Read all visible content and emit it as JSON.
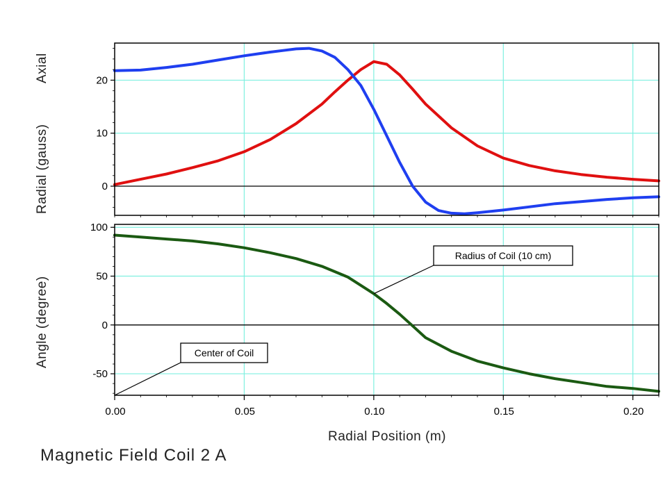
{
  "caption": "Magnetic Field Coil 2 A",
  "colors": {
    "axial": "#e01010",
    "radial": "#1f3ff0",
    "angle": "#1b5a12",
    "grid": "#7ff0e0",
    "zero_line": "#000000"
  },
  "chart_data": [
    {
      "type": "line",
      "ylabel_axial": "Axial",
      "ylabel_radial": "Radial (gauss)",
      "xlim": [
        0,
        0.21
      ],
      "ylim": [
        -5.5,
        27
      ],
      "yticks": [
        0,
        10,
        20
      ],
      "ytick_labels": [
        "0",
        "10",
        "20"
      ],
      "grid": true,
      "series": [
        {
          "name": "Axial",
          "color": "red",
          "x": [
            0.0,
            0.01,
            0.02,
            0.03,
            0.04,
            0.05,
            0.06,
            0.07,
            0.08,
            0.085,
            0.09,
            0.095,
            0.1,
            0.105,
            0.11,
            0.115,
            0.12,
            0.13,
            0.14,
            0.15,
            0.16,
            0.17,
            0.18,
            0.19,
            0.2,
            0.21
          ],
          "y": [
            0.3,
            1.3,
            2.3,
            3.5,
            4.8,
            6.5,
            8.8,
            11.8,
            15.5,
            17.8,
            20.0,
            22.0,
            23.5,
            23.0,
            21.0,
            18.3,
            15.5,
            11.0,
            7.6,
            5.3,
            3.9,
            2.9,
            2.2,
            1.7,
            1.3,
            1.0
          ]
        },
        {
          "name": "Radial",
          "color": "blue",
          "x": [
            0.0,
            0.01,
            0.02,
            0.03,
            0.04,
            0.05,
            0.06,
            0.065,
            0.07,
            0.075,
            0.08,
            0.085,
            0.09,
            0.095,
            0.1,
            0.105,
            0.11,
            0.115,
            0.12,
            0.125,
            0.13,
            0.135,
            0.14,
            0.15,
            0.16,
            0.17,
            0.18,
            0.19,
            0.2,
            0.21
          ],
          "y": [
            21.8,
            21.9,
            22.4,
            23.0,
            23.8,
            24.6,
            25.3,
            25.6,
            25.9,
            26.0,
            25.5,
            24.3,
            22.0,
            19.0,
            14.5,
            9.5,
            4.5,
            0.0,
            -3.0,
            -4.6,
            -5.1,
            -5.2,
            -5.0,
            -4.5,
            -3.9,
            -3.3,
            -2.9,
            -2.5,
            -2.2,
            -2.0
          ]
        }
      ]
    },
    {
      "type": "line",
      "ylabel": "Angle (degree)",
      "xlabel": "Radial Position (m)",
      "xlim": [
        0,
        0.21
      ],
      "ylim": [
        -72,
        103
      ],
      "xticks": [
        0,
        0.05,
        0.1,
        0.15,
        0.2
      ],
      "xtick_labels": [
        "0.00",
        "0.05",
        "0.10",
        "0.15",
        "0.20"
      ],
      "yticks": [
        -50,
        0,
        50,
        100
      ],
      "ytick_labels": [
        "-50",
        "0",
        "50",
        "100"
      ],
      "grid": true,
      "series": [
        {
          "name": "Angle",
          "color": "dark green",
          "x": [
            0.0,
            0.01,
            0.02,
            0.03,
            0.04,
            0.05,
            0.06,
            0.07,
            0.08,
            0.09,
            0.1,
            0.105,
            0.11,
            0.115,
            0.12,
            0.13,
            0.14,
            0.15,
            0.16,
            0.17,
            0.18,
            0.19,
            0.2,
            0.21
          ],
          "y": [
            92,
            90,
            88,
            86,
            83,
            79,
            74,
            68,
            60,
            49,
            32,
            22,
            11,
            -1,
            -13,
            -27,
            -37,
            -44,
            -50,
            -55,
            -59,
            -63,
            -65,
            -68
          ]
        }
      ],
      "annotations": [
        {
          "text": "Radius of Coil (10 cm)",
          "x": 0.1,
          "y": 32
        },
        {
          "text": "Center of Coil",
          "x": 0.0,
          "y": -72
        }
      ]
    }
  ]
}
